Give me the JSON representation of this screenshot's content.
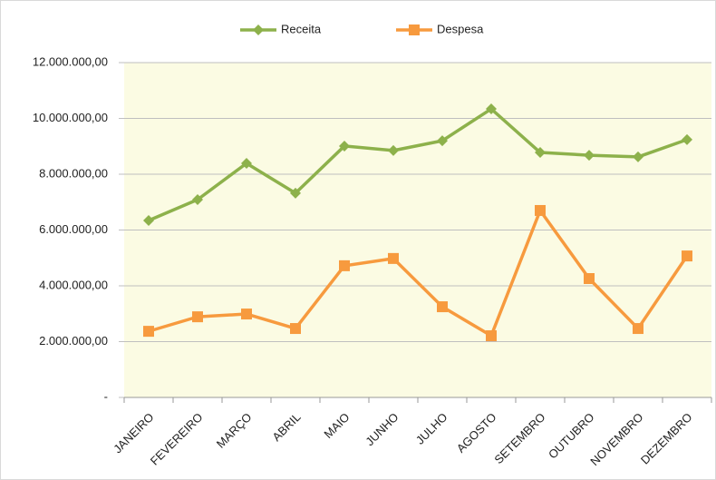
{
  "chart_data": {
    "type": "line",
    "categories": [
      "JANEIRO",
      "FEVEREIRO",
      "MARÇO",
      "ABRIL",
      "MAIO",
      "JUNHO",
      "JULHO",
      "AGOSTO",
      "SETEMBRO",
      "OUTUBRO",
      "NOVEMBRO",
      "DEZEMBRO"
    ],
    "series": [
      {
        "name": "Receita",
        "color": "#8db14b",
        "marker": "diamond",
        "values": [
          6340000,
          7090000,
          8390000,
          7320000,
          9010000,
          8850000,
          9200000,
          10340000,
          8780000,
          8680000,
          8620000,
          9240000
        ]
      },
      {
        "name": "Despesa",
        "color": "#f79a3e",
        "marker": "square",
        "values": [
          2370000,
          2890000,
          2990000,
          2470000,
          4720000,
          4980000,
          3250000,
          2210000,
          6700000,
          4260000,
          2470000,
          5070000
        ]
      }
    ],
    "ylim": [
      0,
      12000000
    ],
    "yticks": [
      {
        "value": 0,
        "label": "-"
      },
      {
        "value": 2000000,
        "label": "2.000.000,00"
      },
      {
        "value": 4000000,
        "label": "4.000.000,00"
      },
      {
        "value": 6000000,
        "label": "6.000.000,00"
      },
      {
        "value": 8000000,
        "label": "8.000.000,00"
      },
      {
        "value": 10000000,
        "label": "10.000.000,00"
      },
      {
        "value": 12000000,
        "label": "12.000.000,00"
      }
    ],
    "grid": true,
    "legend": "top"
  }
}
